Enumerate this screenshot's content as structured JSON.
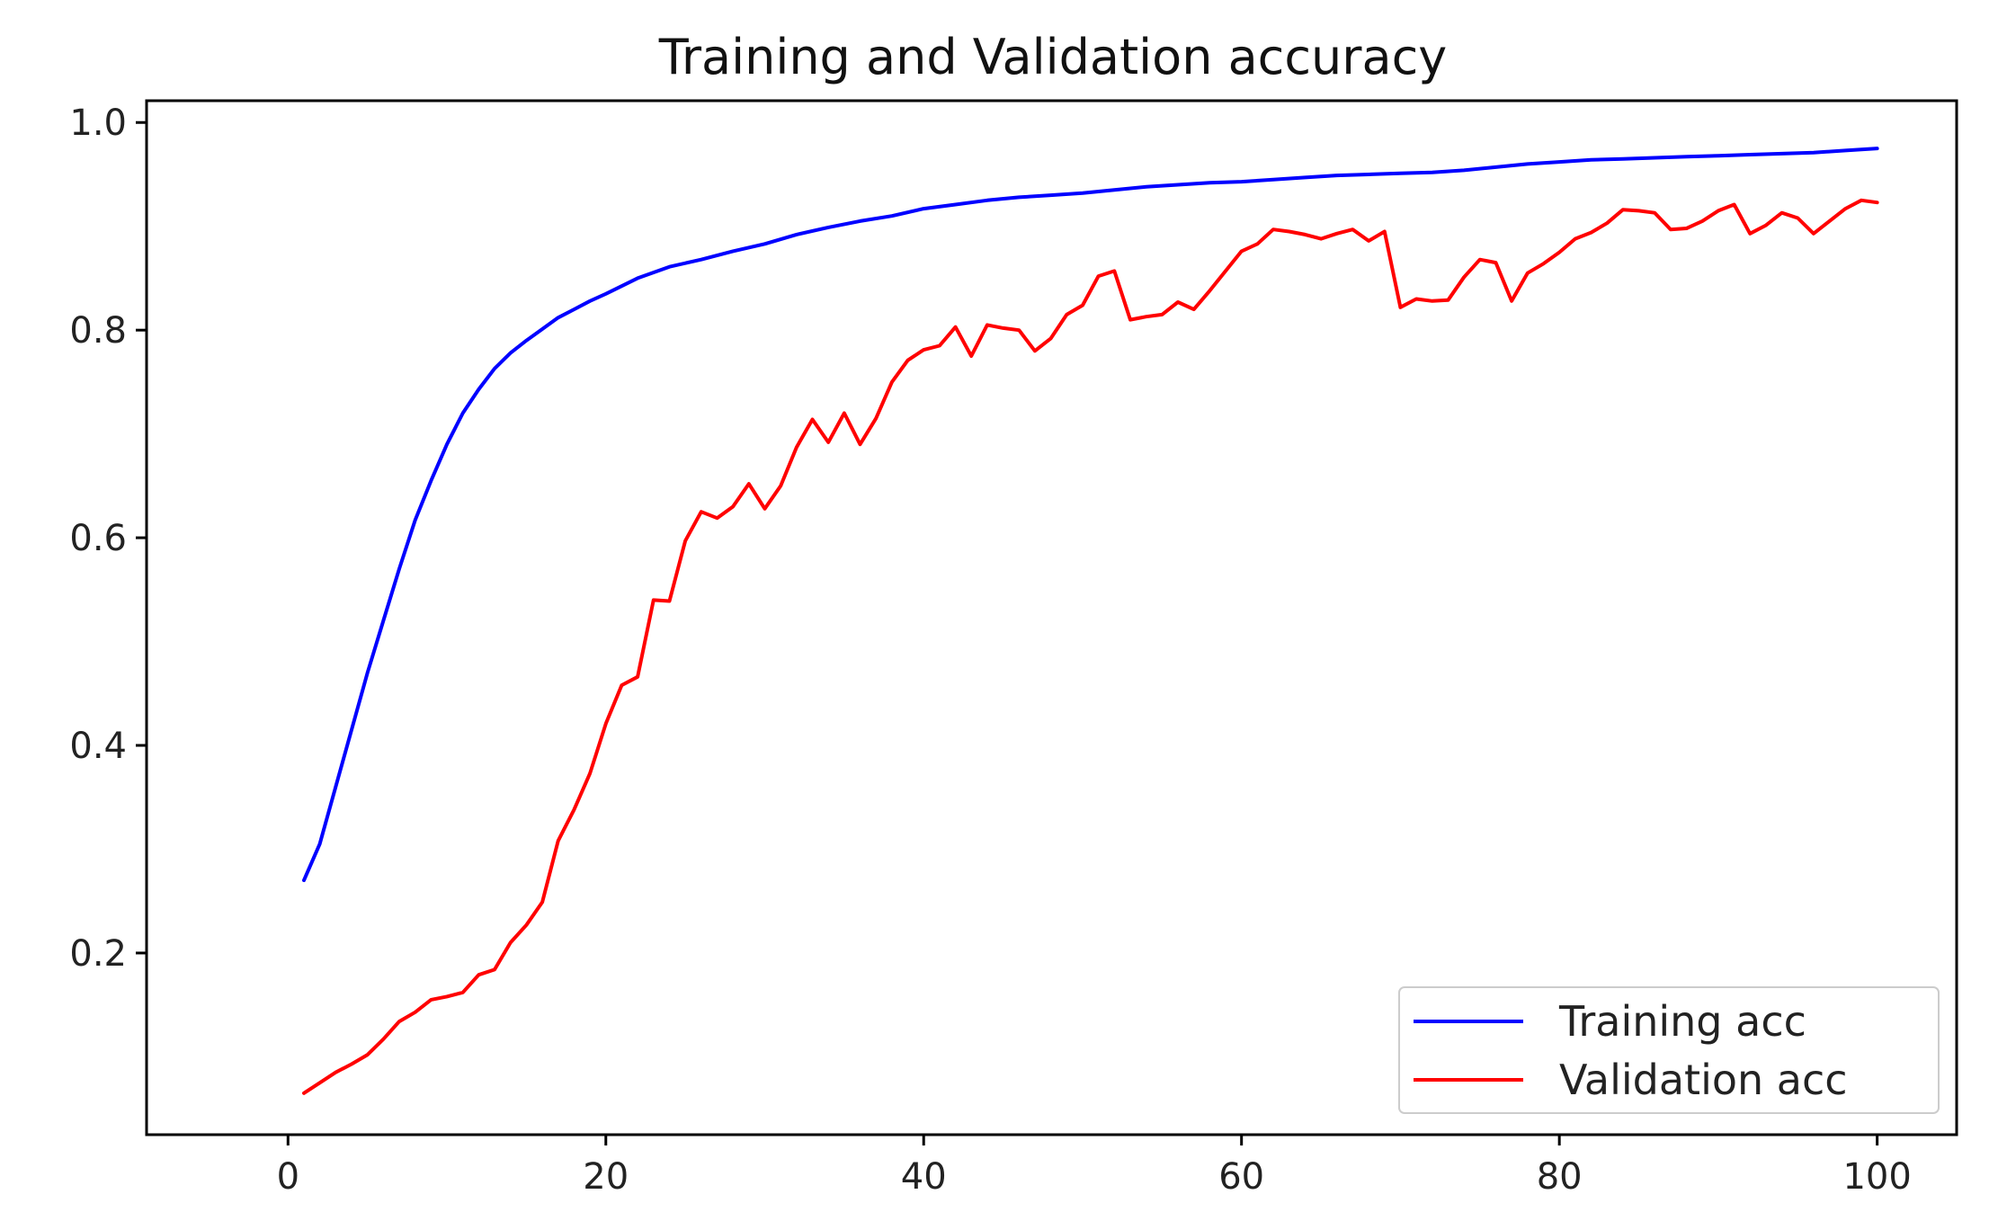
{
  "chart_data": {
    "type": "line",
    "title": "Training and Validation accuracy",
    "xlabel": "",
    "ylabel": "",
    "xlim": [
      -8.9,
      105
    ],
    "ylim": [
      0.025,
      1.021
    ],
    "xticks": [
      0,
      20,
      40,
      60,
      80,
      100
    ],
    "yticks": [
      0.2,
      0.4,
      0.6,
      0.8,
      1.0
    ],
    "grid": false,
    "legend_position": "lower-right",
    "series": [
      {
        "name": "Training acc",
        "color": "#0000ff",
        "x": [
          1,
          2,
          3,
          4,
          5,
          6,
          7,
          8,
          9,
          10,
          11,
          12,
          13,
          14,
          15,
          16,
          17,
          18,
          19,
          20,
          22,
          24,
          26,
          28,
          30,
          32,
          34,
          36,
          38,
          40,
          42,
          44,
          46,
          48,
          50,
          52,
          54,
          56,
          58,
          60,
          62,
          64,
          66,
          68,
          70,
          72,
          74,
          76,
          78,
          80,
          82,
          84,
          86,
          88,
          90,
          92,
          94,
          96,
          98,
          100
        ],
        "y": [
          0.27,
          0.305,
          0.36,
          0.415,
          0.47,
          0.52,
          0.57,
          0.617,
          0.655,
          0.69,
          0.72,
          0.743,
          0.763,
          0.778,
          0.79,
          0.801,
          0.812,
          0.82,
          0.828,
          0.835,
          0.85,
          0.861,
          0.868,
          0.876,
          0.883,
          0.892,
          0.899,
          0.905,
          0.91,
          0.917,
          0.921,
          0.925,
          0.928,
          0.93,
          0.932,
          0.935,
          0.938,
          0.94,
          0.942,
          0.943,
          0.945,
          0.947,
          0.949,
          0.95,
          0.951,
          0.952,
          0.954,
          0.957,
          0.96,
          0.962,
          0.964,
          0.965,
          0.966,
          0.967,
          0.968,
          0.969,
          0.97,
          0.971,
          0.973,
          0.975
        ]
      },
      {
        "name": "Validation acc",
        "color": "#ff0000",
        "x": [
          1,
          2,
          3,
          4,
          5,
          6,
          7,
          8,
          9,
          10,
          11,
          12,
          13,
          14,
          15,
          16,
          17,
          18,
          19,
          20,
          21,
          22,
          23,
          24,
          25,
          26,
          27,
          28,
          29,
          30,
          31,
          32,
          33,
          34,
          35,
          36,
          37,
          38,
          39,
          40,
          41,
          42,
          43,
          44,
          45,
          46,
          47,
          48,
          49,
          50,
          51,
          52,
          53,
          54,
          55,
          56,
          57,
          58,
          59,
          60,
          61,
          62,
          63,
          64,
          65,
          66,
          67,
          68,
          69,
          70,
          71,
          72,
          73,
          74,
          75,
          76,
          77,
          78,
          79,
          80,
          81,
          82,
          83,
          84,
          85,
          86,
          87,
          88,
          89,
          90,
          91,
          92,
          93,
          94,
          95,
          96,
          97,
          98,
          99,
          100
        ],
        "y": [
          0.065,
          0.075,
          0.085,
          0.093,
          0.102,
          0.117,
          0.134,
          0.143,
          0.155,
          0.158,
          0.162,
          0.179,
          0.184,
          0.21,
          0.227,
          0.249,
          0.308,
          0.338,
          0.373,
          0.421,
          0.458,
          0.466,
          0.54,
          0.539,
          0.597,
          0.625,
          0.619,
          0.63,
          0.652,
          0.628,
          0.65,
          0.687,
          0.714,
          0.692,
          0.72,
          0.69,
          0.715,
          0.75,
          0.771,
          0.781,
          0.785,
          0.803,
          0.775,
          0.805,
          0.802,
          0.8,
          0.78,
          0.792,
          0.815,
          0.824,
          0.852,
          0.857,
          0.81,
          0.813,
          0.815,
          0.827,
          0.82,
          0.838,
          0.857,
          0.876,
          0.883,
          0.897,
          0.895,
          0.892,
          0.888,
          0.893,
          0.897,
          0.886,
          0.895,
          0.822,
          0.83,
          0.828,
          0.829,
          0.851,
          0.868,
          0.865,
          0.828,
          0.855,
          0.864,
          0.875,
          0.888,
          0.894,
          0.903,
          0.916,
          0.915,
          0.913,
          0.897,
          0.898,
          0.905,
          0.915,
          0.921,
          0.893,
          0.901,
          0.913,
          0.908,
          0.893,
          0.905,
          0.917,
          0.925,
          0.923
        ]
      }
    ]
  }
}
